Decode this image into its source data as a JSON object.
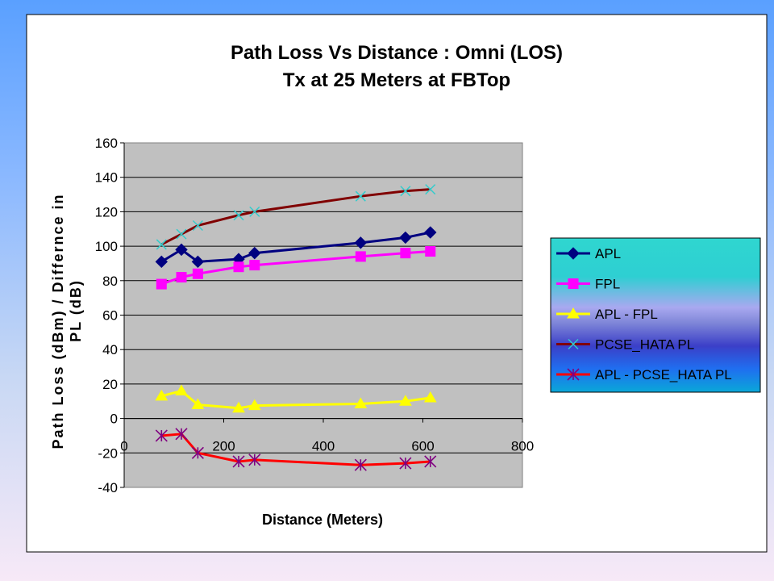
{
  "chart_data": {
    "type": "line",
    "title_line1": "Path Loss Vs Distance : Omni (LOS)",
    "title_line2": "Tx at 25 Meters at FBTop",
    "xlabel": "Distance (Meters)",
    "ylabel_line1": "Path Loss (dBm) / Differnce in",
    "ylabel_line2": "PL (dB)",
    "xlim": [
      0,
      800
    ],
    "ylim": [
      -40,
      160
    ],
    "x_ticks": [
      "0",
      "200",
      "400",
      "600",
      "800"
    ],
    "y_ticks": [
      "160",
      "140",
      "120",
      "100",
      "80",
      "60",
      "40",
      "20",
      "0",
      "-20",
      "-40"
    ],
    "grid": "horizontal",
    "legend_position": "right",
    "x": [
      75,
      115,
      148,
      230,
      262,
      475,
      565,
      615
    ],
    "series": [
      {
        "name": "APL",
        "color": "#000080",
        "marker": "diamond",
        "values": [
          91,
          98,
          91,
          92.5,
          96,
          102,
          105,
          108
        ]
      },
      {
        "name": "FPL",
        "color": "#ff00ff",
        "marker": "square",
        "values": [
          78,
          82,
          84,
          88,
          89,
          94,
          96,
          97
        ]
      },
      {
        "name": "APL - FPL",
        "color": "#ffff00",
        "marker": "triangle",
        "values": [
          13,
          16,
          8,
          6,
          7.5,
          8.5,
          10,
          12
        ]
      },
      {
        "name": "PCSE_HATA PL",
        "color": "#800000",
        "marker": "x",
        "marker_color": "#33cccc",
        "values": [
          101,
          107,
          112,
          118,
          120,
          129,
          132,
          133
        ]
      },
      {
        "name": "APL - PCSE_HATA PL",
        "color": "#ff0000",
        "marker": "star",
        "marker_color": "#800080",
        "values": [
          -10,
          -9,
          -20,
          -25,
          -24,
          -27,
          -26,
          -25
        ]
      }
    ]
  }
}
